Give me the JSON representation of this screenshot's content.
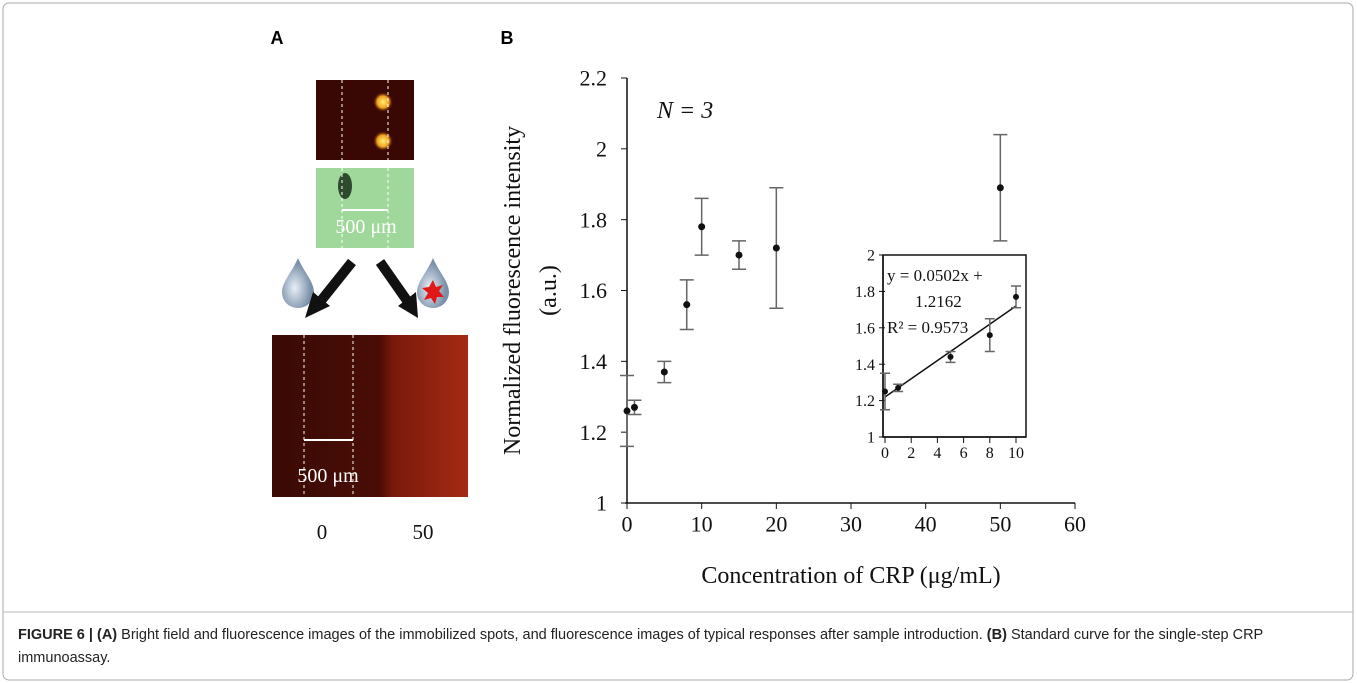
{
  "panels": {
    "a": "A",
    "b": "B"
  },
  "panel_a": {
    "scale_bar_top": "500 μm",
    "scale_bar_bottom": "500 μm",
    "concentrations": [
      "0",
      "50"
    ]
  },
  "chart_data": [
    {
      "type": "scatter",
      "x_label": "Concentration of CRP (μg/mL)",
      "y_label": [
        "Normalized fluorescence intensity",
        "(a.u.)"
      ],
      "annotation": "N = 3",
      "xlim": [
        0,
        60
      ],
      "xticks": [
        0,
        10,
        20,
        30,
        40,
        50,
        60
      ],
      "ylim": [
        1,
        2.2
      ],
      "yticks": [
        1,
        1.2,
        1.4,
        1.6,
        1.8,
        2,
        2.2
      ],
      "series": [
        {
          "color": "#111111",
          "error_color": "#666666",
          "x": [
            0,
            1,
            5,
            8,
            10,
            15,
            20,
            50
          ],
          "values": [
            1.26,
            1.27,
            1.37,
            1.56,
            1.78,
            1.7,
            1.72,
            1.89
          ],
          "errors": [
            0.1,
            0.02,
            0.03,
            0.07,
            0.08,
            0.04,
            0.17,
            0.15
          ]
        }
      ]
    },
    {
      "type": "scatter",
      "inset": true,
      "annotation": [
        "y = 0.0502x +",
        "1.2162",
        "R² = 0.9573"
      ],
      "xlim": [
        0,
        10
      ],
      "xticks": [
        0,
        2,
        4,
        6,
        8,
        10
      ],
      "ylim": [
        1,
        2
      ],
      "yticks": [
        1,
        1.2,
        1.4,
        1.6,
        1.8,
        2
      ],
      "series": [
        {
          "color": "#111111",
          "error_color": "#666666",
          "x": [
            0,
            1,
            5,
            8,
            10
          ],
          "values": [
            1.25,
            1.27,
            1.44,
            1.56,
            1.77
          ],
          "errors": [
            0.1,
            0.02,
            0.03,
            0.09,
            0.06
          ]
        }
      ],
      "trendline": {
        "x": [
          0,
          10
        ],
        "values": [
          1.22,
          1.72
        ]
      }
    }
  ],
  "caption": {
    "figure": "FIGURE 6 |",
    "a_label": "(A)",
    "a_text": "Bright field and fluorescence images of the immobilized spots, and fluorescence images of typical responses after sample introduction.",
    "b_label": "(B)",
    "b_text": "Standard curve for the single-step CRP immunoassay."
  }
}
